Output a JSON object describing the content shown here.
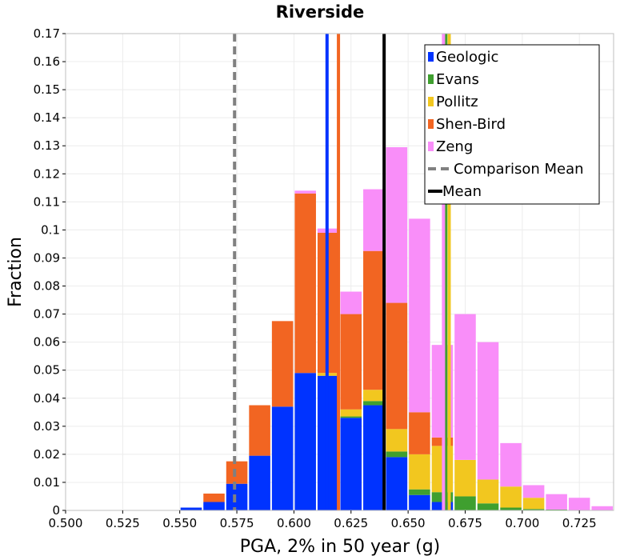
{
  "chart_data": {
    "type": "bar",
    "stacked": true,
    "title": "Riverside",
    "xlabel": "PGA, 2% in 50 year (g)",
    "ylabel": "Fraction",
    "xlim": [
      0.5,
      0.74
    ],
    "ylim": [
      0,
      0.17
    ],
    "bin_width": 0.01,
    "grid": true,
    "legend_position": "top-right",
    "x_ticks": [
      "0.500",
      "0.525",
      "0.550",
      "0.575",
      "0.600",
      "0.625",
      "0.650",
      "0.675",
      "0.700",
      "0.725"
    ],
    "x_tick_values": [
      0.5,
      0.525,
      0.55,
      0.575,
      0.6,
      0.625,
      0.65,
      0.675,
      0.7,
      0.725
    ],
    "y_ticks": [
      "0",
      "0.01",
      "0.02",
      "0.03",
      "0.04",
      "0.05",
      "0.06",
      "0.07",
      "0.08",
      "0.09",
      "0.1",
      "0.11",
      "0.12",
      "0.13",
      "0.14",
      "0.15",
      "0.16",
      "0.17"
    ],
    "y_tick_values": [
      0,
      0.01,
      0.02,
      0.03,
      0.04,
      0.05,
      0.06,
      0.07,
      0.08,
      0.09,
      0.1,
      0.11,
      0.12,
      0.13,
      0.14,
      0.15,
      0.16,
      0.17
    ],
    "bins": [
      0.555,
      0.565,
      0.575,
      0.585,
      0.595,
      0.605,
      0.615,
      0.625,
      0.635,
      0.645,
      0.655,
      0.665,
      0.675,
      0.685,
      0.695,
      0.705,
      0.715,
      0.725,
      0.735
    ],
    "series": [
      {
        "name": "Geologic",
        "color": "#0033ff",
        "values": [
          0.001,
          0.003,
          0.0095,
          0.0195,
          0.037,
          0.049,
          0.048,
          0.033,
          0.0375,
          0.019,
          0.0055,
          0.003,
          0,
          0,
          0,
          0,
          0,
          0,
          0
        ]
      },
      {
        "name": "Evans",
        "color": "#3f9f2f",
        "values": [
          0,
          0,
          0,
          0,
          0,
          0,
          0,
          0.0005,
          0.0015,
          0.002,
          0.002,
          0.0035,
          0.005,
          0.0025,
          0.001,
          0.0005,
          0.0003,
          0,
          0
        ]
      },
      {
        "name": "Pollitz",
        "color": "#f2c71f",
        "values": [
          0,
          0,
          0,
          0,
          0,
          0,
          0.001,
          0.0025,
          0.004,
          0.008,
          0.0125,
          0.0165,
          0.013,
          0.0085,
          0.0075,
          0.004,
          0,
          0,
          0
        ]
      },
      {
        "name": "Shen-Bird",
        "color": "#f26522",
        "values": [
          0,
          0.003,
          0.008,
          0.018,
          0.0305,
          0.064,
          0.05,
          0.034,
          0.0495,
          0.045,
          0.015,
          0.003,
          0,
          0,
          0,
          0,
          0,
          0,
          0
        ]
      },
      {
        "name": "Zeng",
        "color": "#f98ef9",
        "values": [
          0,
          0,
          0,
          0,
          0,
          0.001,
          0.0015,
          0.008,
          0.022,
          0.0555,
          0.069,
          0.033,
          0.052,
          0.049,
          0.0155,
          0.0045,
          0.0055,
          0.0045,
          0.0015
        ]
      }
    ],
    "vertical_lines": [
      {
        "name": "Comparison Mean",
        "x": 0.574,
        "color": "#808080",
        "style": "dashed"
      },
      {
        "name": "Mean",
        "x": 0.6395,
        "color": "#000000",
        "style": "solid"
      },
      {
        "name": "Geologic",
        "x": 0.6145,
        "color": "#0033ff",
        "style": "solid"
      },
      {
        "name": "Shen-Bird",
        "x": 0.6195,
        "color": "#f26522",
        "style": "solid"
      },
      {
        "name": "Evans",
        "x": 0.6665,
        "color": "#3f9f2f",
        "style": "solid"
      },
      {
        "name": "Pollitz",
        "x": 0.668,
        "color": "#f2c71f",
        "style": "solid"
      },
      {
        "name": "Zeng",
        "x": 0.6655,
        "color": "#f98ef9",
        "style": "solid"
      }
    ],
    "legend": [
      {
        "label": "Geologic",
        "color": "#0033ff",
        "kind": "patch"
      },
      {
        "label": "Evans",
        "color": "#3f9f2f",
        "kind": "patch"
      },
      {
        "label": "Pollitz",
        "color": "#f2c71f",
        "kind": "patch"
      },
      {
        "label": "Shen-Bird",
        "color": "#f26522",
        "kind": "patch"
      },
      {
        "label": "Zeng",
        "color": "#f98ef9",
        "kind": "patch"
      },
      {
        "label": "Comparison Mean",
        "color": "#808080",
        "kind": "dashed-line"
      },
      {
        "label": "Mean",
        "color": "#000000",
        "kind": "line"
      }
    ]
  }
}
